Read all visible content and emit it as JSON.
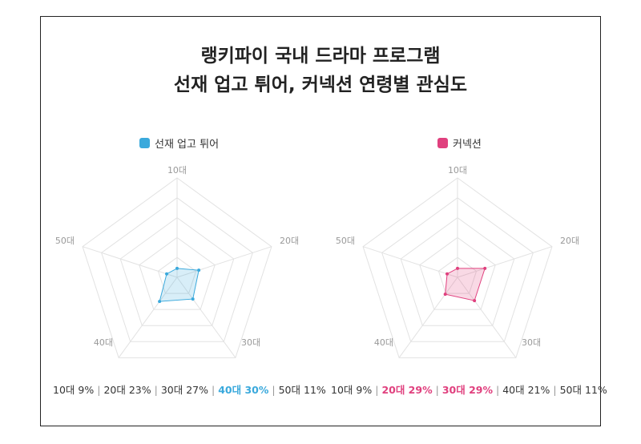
{
  "title": {
    "line1": "랭키파이 국내 드라마 프로그램",
    "line2": "선재 업고 튀어, 커넥션 연령별 관심도"
  },
  "chart_data": [
    {
      "type": "radar",
      "series": [
        {
          "name": "선재 업고 튀어",
          "color": "#3aa9dc",
          "values": [
            9,
            23,
            27,
            30,
            11
          ]
        }
      ],
      "categories": [
        "10대",
        "20대",
        "30대",
        "40대",
        "50대"
      ],
      "rmax": 100,
      "rings": 5,
      "summary": [
        {
          "text": "10대 9%",
          "highlight": false
        },
        {
          "text": "20대 23%",
          "highlight": false
        },
        {
          "text": "30대 27%",
          "highlight": false
        },
        {
          "text": "40대 30%",
          "highlight": true
        },
        {
          "text": "50대 11%",
          "highlight": false
        }
      ]
    },
    {
      "type": "radar",
      "series": [
        {
          "name": "커넥션",
          "color": "#e0407e",
          "values": [
            9,
            29,
            29,
            21,
            11
          ]
        }
      ],
      "categories": [
        "10대",
        "20대",
        "30대",
        "40대",
        "50대"
      ],
      "rmax": 100,
      "rings": 5,
      "summary": [
        {
          "text": "10대 9%",
          "highlight": false
        },
        {
          "text": "20대 29%",
          "highlight": true
        },
        {
          "text": "30대 29%",
          "highlight": true
        },
        {
          "text": "40대 21%",
          "highlight": false
        },
        {
          "text": "50대 11%",
          "highlight": false
        }
      ]
    }
  ]
}
